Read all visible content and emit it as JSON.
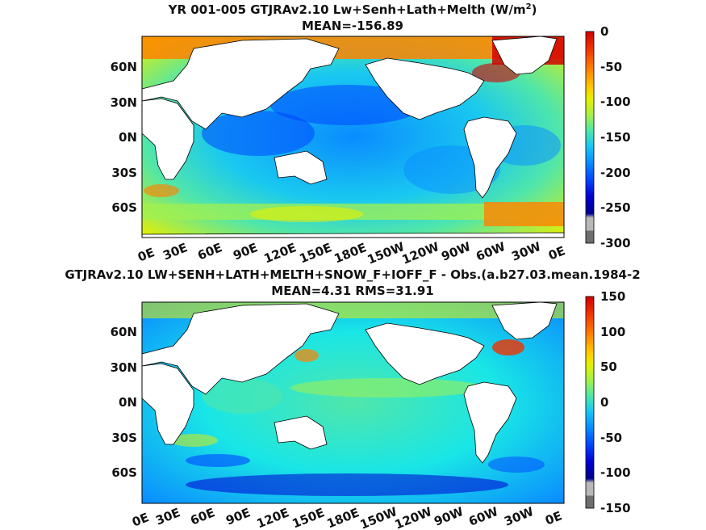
{
  "figure": {
    "panels": [
      {
        "title_line1": "YR 001-005 GTJRAv2.10 Lw+Senh+Lath+Melth (W/m",
        "title_sup": "2",
        "title_close": ")",
        "title_line2": "MEAN=-156.89"
      },
      {
        "title_line1": "GTJRAv2.10 LW+SENH+LATH+MELTH+SNOW_F+IOFF_F - Obs.(a.b27.03.mean.1984-2",
        "title_sup": "",
        "title_close": "",
        "title_line2": "MEAN=4.31 RMS=31.91"
      }
    ]
  },
  "chart_data": [
    {
      "type": "heatmap",
      "title": "YR 001-005 GTJRAv2.10 Lw+Senh+Lath+Melth (W/m2)",
      "subtitle": "MEAN=-156.89",
      "mean": -156.89,
      "x_ticks": [
        "0E",
        "30E",
        "60E",
        "90E",
        "120E",
        "150E",
        "180E",
        "150W",
        "120W",
        "90W",
        "60W",
        "30W",
        "0E"
      ],
      "y_ticks": [
        "60N",
        "30N",
        "0N",
        "30S",
        "60S"
      ],
      "x_range_lon": [
        0,
        360
      ],
      "y_range_lat": [
        -80,
        88
      ],
      "colorbar": {
        "range": [
          -300,
          0
        ],
        "ticks": [
          0,
          -50,
          -100,
          -150,
          -200,
          -250,
          -300
        ],
        "colors": [
          "#6e6e6e",
          "#b8b8b8",
          "#00008c",
          "#0000d2",
          "#0046ff",
          "#0a8cff",
          "#19c8f0",
          "#50e6aa",
          "#a0f050",
          "#e6f000",
          "#ffc800",
          "#ff8200",
          "#f03200",
          "#d20000"
        ]
      }
    },
    {
      "type": "heatmap",
      "title": "GTJRAv2.10 LW+SENH+LATH+MELTH+SNOW_F+IOFF_F - Obs.(a.b27.03.mean.1984-2",
      "subtitle": "MEAN=4.31 RMS=31.91",
      "mean": 4.31,
      "rms": 31.91,
      "x_ticks": [
        "0E",
        "30E",
        "60E",
        "90E",
        "120E",
        "150E",
        "180E",
        "150W",
        "120W",
        "90W",
        "60W",
        "30W",
        "0E"
      ],
      "y_ticks": [
        "60N",
        "30N",
        "0N",
        "30S",
        "60S"
      ],
      "x_range_lon": [
        0,
        360
      ],
      "y_range_lat": [
        -80,
        88
      ],
      "colorbar": {
        "range": [
          -150,
          150
        ],
        "ticks": [
          150,
          100,
          50,
          0,
          -50,
          -100,
          -150
        ],
        "colors": [
          "#6e6e6e",
          "#b8b8b8",
          "#00008c",
          "#0000d2",
          "#0046ff",
          "#0a8cff",
          "#19c8f0",
          "#50e6aa",
          "#a0f050",
          "#e6f000",
          "#ffc800",
          "#ff8200",
          "#f03200",
          "#d20000"
        ]
      }
    }
  ]
}
